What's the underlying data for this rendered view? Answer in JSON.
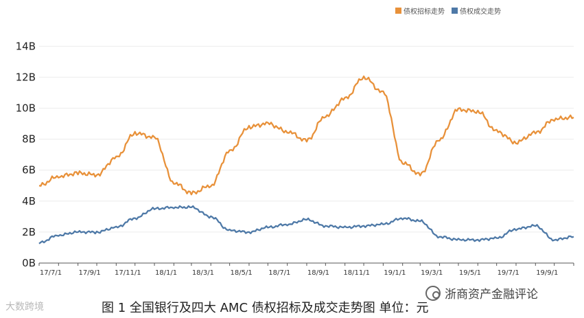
{
  "legend": {
    "tender_label": "债权招标走势",
    "trade_label": "债权成交走势",
    "tender_color": "#E8913A",
    "trade_color": "#4E79A7"
  },
  "caption": "图 1 全国银行及四大 AMC 债权招标及成交走势图 单位：元",
  "watermark_left": "大数跨境",
  "watermark_right": "浙商资产金融评论",
  "chart_data": {
    "type": "line",
    "x_ticks": [
      "17/7/1",
      "17/9/1",
      "17/11/1",
      "18/1/1",
      "18/3/1",
      "18/5/1",
      "18/7/1",
      "18/9/1",
      "18/11/1",
      "19/1/1",
      "19/3/1",
      "19/5/1",
      "19/7/1",
      "19/9/1"
    ],
    "y_ticks": [
      "0B",
      "2B",
      "4B",
      "6B",
      "8B",
      "10B",
      "12B",
      "14B"
    ],
    "ylim": [
      0,
      15.3
    ],
    "grid": true,
    "legend_position": "top-right",
    "x": [
      "2017-07-01",
      "2017-08-01",
      "2017-09-01",
      "2017-10-01",
      "2017-11-01",
      "2017-12-01",
      "2018-01-01",
      "2018-02-01",
      "2018-03-01",
      "2018-04-01",
      "2018-05-01",
      "2018-06-01",
      "2018-07-01",
      "2018-08-01",
      "2018-09-01",
      "2018-10-01",
      "2018-11-01",
      "2018-12-01",
      "2019-01-01",
      "2019-02-01",
      "2019-03-01",
      "2019-04-01",
      "2019-05-01",
      "2019-06-01",
      "2019-07-01",
      "2019-08-01",
      "2019-09-01",
      "2019-10-01",
      "2019-11-01"
    ],
    "series": [
      {
        "name": "债权招标走势",
        "color": "#E8913A",
        "values": [
          5.0,
          5.6,
          5.8,
          5.7,
          6.8,
          8.4,
          8.1,
          5.2,
          4.5,
          5.0,
          7.2,
          8.8,
          9.0,
          8.5,
          7.9,
          9.5,
          10.6,
          12.0,
          11.0,
          6.5,
          5.7,
          8.0,
          9.9,
          9.8,
          8.5,
          7.8,
          8.4,
          9.3,
          9.4
        ]
      },
      {
        "name": "债权成交走势",
        "color": "#4E79A7",
        "values": [
          1.3,
          1.8,
          2.0,
          2.0,
          2.3,
          2.9,
          3.5,
          3.6,
          3.6,
          3.0,
          2.1,
          2.0,
          2.3,
          2.5,
          2.8,
          2.4,
          2.3,
          2.4,
          2.5,
          2.9,
          2.7,
          1.7,
          1.5,
          1.5,
          1.6,
          2.2,
          2.4,
          1.5,
          1.7
        ]
      }
    ]
  }
}
